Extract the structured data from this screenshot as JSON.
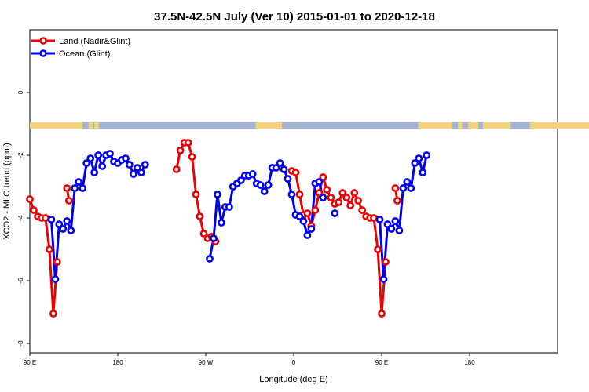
{
  "chart_data": {
    "type": "line",
    "title": "37.5N-42.5N July (Ver 10)   2015-01-01 to 2020-12-18",
    "xlabel": "Longitude (deg E)",
    "ylabel": "XCO2 - MLO trend (ppm)",
    "xlim": [
      90,
      450
    ],
    "ylim": [
      -8.3,
      2.0
    ],
    "x_ticks": [
      {
        "value": 90,
        "label": "90 E"
      },
      {
        "value": 180,
        "label": "180"
      },
      {
        "value": 270,
        "label": "90 W"
      },
      {
        "value": 360,
        "label": "0"
      },
      {
        "value": 450,
        "label": "90 E"
      },
      {
        "value": 540,
        "label": "180"
      }
    ],
    "y_ticks": [
      {
        "value": 0,
        "label": "0"
      },
      {
        "value": -2,
        "label": "-2"
      },
      {
        "value": -4,
        "label": "-4"
      },
      {
        "value": -6,
        "label": "-6"
      },
      {
        "value": -8,
        "label": "-8"
      }
    ],
    "land_strip": {
      "y_top": -0.95,
      "y_bottom": -1.15,
      "ocean_color": "#a2b5d6",
      "land_color": "#f3d27a",
      "land_ranges": [
        [
          90,
          126
        ],
        [
          130,
          133
        ],
        [
          134,
          137
        ],
        [
          244,
          262
        ],
        [
          355,
          378
        ],
        [
          382,
          385
        ],
        [
          389,
          396
        ],
        [
          399,
          418
        ],
        [
          431,
          488
        ]
      ]
    },
    "legend": {
      "position": "top-left",
      "entries": [
        {
          "name": "Land (Nadir&Glint)",
          "color": "#ee0000"
        },
        {
          "name": "Ocean (Glint)",
          "color": "#0000ee"
        }
      ]
    },
    "series": [
      {
        "name": "Land (Nadir&Glint)",
        "color": "#ee0000",
        "segments": [
          [
            [
              90,
              -3.4
            ],
            [
              94,
              -3.75
            ],
            [
              98,
              -3.95
            ],
            [
              102,
              -4.0
            ],
            [
              106,
              -4.0
            ],
            [
              110,
              -5.0
            ],
            [
              114,
              -7.05
            ],
            [
              118,
              -5.4
            ]
          ],
          [
            [
              128,
              -3.05
            ],
            [
              130,
              -3.45
            ]
          ],
          [
            [
              240,
              -2.45
            ],
            [
              244,
              -1.85
            ],
            [
              248,
              -1.6
            ],
            [
              252,
              -1.6
            ],
            [
              256,
              -2.05
            ],
            [
              260,
              -3.25
            ],
            [
              264,
              -3.95
            ],
            [
              268,
              -4.5
            ],
            [
              272,
              -4.65
            ],
            [
              276,
              -4.6
            ],
            [
              280,
              -4.75
            ]
          ],
          [
            [
              358,
              -2.5
            ],
            [
              362,
              -2.55
            ],
            [
              366,
              -3.25
            ],
            [
              370,
              -3.9
            ],
            [
              374,
              -3.85
            ],
            [
              378,
              -4.25
            ],
            [
              382,
              -3.75
            ],
            [
              386,
              -3.2
            ],
            [
              390,
              -2.7
            ],
            [
              394,
              -3.1
            ],
            [
              398,
              -3.35
            ],
            [
              402,
              -3.55
            ],
            [
              406,
              -3.5
            ],
            [
              410,
              -3.2
            ],
            [
              414,
              -3.35
            ],
            [
              418,
              -3.6
            ],
            [
              422,
              -3.2
            ],
            [
              426,
              -3.45
            ],
            [
              430,
              -3.75
            ],
            [
              434,
              -3.95
            ],
            [
              438,
              -4.0
            ],
            [
              442,
              -4.0
            ],
            [
              446,
              -5.0
            ],
            [
              450,
              -7.05
            ],
            [
              454,
              -5.4
            ]
          ],
          [
            [
              464,
              -3.05
            ],
            [
              466,
              -3.45
            ]
          ]
        ]
      },
      {
        "name": "Ocean (Glint)",
        "color": "#0000ee",
        "segments": [
          [
            [
              112,
              -4.05
            ],
            [
              116,
              -5.95
            ],
            [
              120,
              -4.2
            ],
            [
              124,
              -4.35
            ],
            [
              128,
              -4.1
            ],
            [
              132,
              -4.4
            ],
            [
              136,
              -3.05
            ],
            [
              140,
              -2.85
            ],
            [
              144,
              -3.05
            ],
            [
              148,
              -2.25
            ],
            [
              152,
              -2.1
            ],
            [
              156,
              -2.55
            ],
            [
              160,
              -2.0
            ],
            [
              164,
              -2.35
            ],
            [
              168,
              -2.0
            ],
            [
              172,
              -1.95
            ],
            [
              176,
              -2.2
            ],
            [
              180,
              -2.25
            ],
            [
              184,
              -2.15
            ],
            [
              188,
              -2.1
            ],
            [
              192,
              -2.3
            ],
            [
              196,
              -2.6
            ],
            [
              200,
              -2.4
            ],
            [
              204,
              -2.55
            ],
            [
              208,
              -2.3
            ]
          ],
          [
            [
              274,
              -5.3
            ],
            [
              278,
              -4.65
            ],
            [
              282,
              -3.25
            ],
            [
              286,
              -4.15
            ],
            [
              290,
              -3.65
            ],
            [
              294,
              -3.65
            ],
            [
              298,
              -3.0
            ],
            [
              302,
              -2.9
            ],
            [
              306,
              -2.8
            ],
            [
              310,
              -2.65
            ],
            [
              314,
              -2.65
            ],
            [
              318,
              -2.6
            ],
            [
              322,
              -2.9
            ],
            [
              326,
              -2.95
            ],
            [
              330,
              -3.15
            ],
            [
              334,
              -2.95
            ],
            [
              338,
              -2.4
            ],
            [
              342,
              -2.4
            ],
            [
              346,
              -2.25
            ],
            [
              350,
              -2.45
            ],
            [
              354,
              -2.75
            ],
            [
              358,
              -3.25
            ],
            [
              362,
              -3.9
            ],
            [
              366,
              -3.95
            ],
            [
              370,
              -4.1
            ],
            [
              374,
              -4.55
            ],
            [
              378,
              -4.35
            ],
            [
              382,
              -2.9
            ],
            [
              386,
              -2.85
            ],
            [
              390,
              -3.35
            ]
          ],
          [
            [
              402,
              -3.85
            ]
          ],
          [
            [
              448,
              -4.05
            ],
            [
              452,
              -5.95
            ],
            [
              456,
              -4.2
            ],
            [
              460,
              -4.35
            ],
            [
              464,
              -4.1
            ],
            [
              468,
              -4.4
            ],
            [
              472,
              -3.05
            ],
            [
              476,
              -2.85
            ],
            [
              480,
              -3.05
            ],
            [
              484,
              -2.25
            ],
            [
              488,
              -2.1
            ],
            [
              492,
              -2.55
            ],
            [
              496,
              -2.0
            ]
          ]
        ]
      }
    ]
  }
}
